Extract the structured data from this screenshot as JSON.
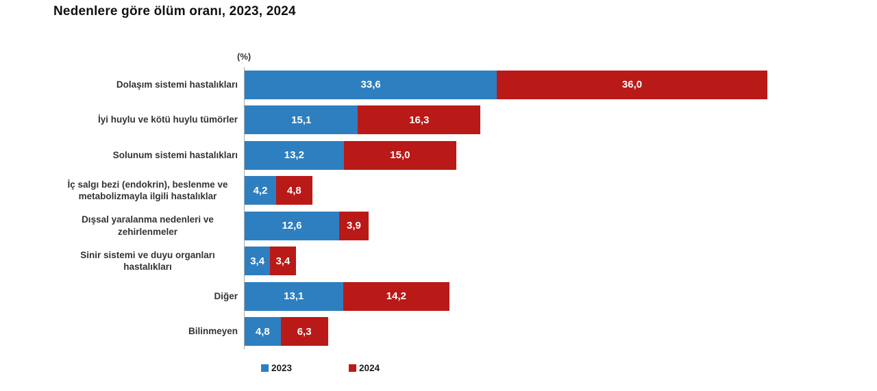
{
  "title": "Nedenlere göre ölüm oranı, 2023, 2024",
  "unit_label": "(%)",
  "colors": {
    "series_2023": "#2E7FC0",
    "series_2024": "#B91A17",
    "axis_line": "#a8a8a8"
  },
  "legend": [
    {
      "label": "2023",
      "color": "#2E7FC0"
    },
    {
      "label": "2024",
      "color": "#B91A17"
    }
  ],
  "chart_data": {
    "type": "bar",
    "orientation": "horizontal-stacked",
    "title": "Nedenlere göre ölüm oranı, 2023, 2024",
    "xlabel": "(%)",
    "value_format": "comma-decimal",
    "grid": false,
    "legend_position": "bottom",
    "categories": [
      "Dolaşım sistemi hastalıkları",
      "İyi huylu ve kötü huylu tümörler",
      "Solunum sistemi hastalıkları",
      "İç salgı bezi (endokrin), beslenme ve metabolizmayla ilgili hastalıklar",
      "Dışsal yaralanma nedenleri ve zehirlenmeler",
      "Sinir sistemi ve duyu organları hastalıkları",
      "Diğer",
      "Bilinmeyen"
    ],
    "series": [
      {
        "name": "2023",
        "color": "#2E7FC0",
        "values": [
          33.6,
          15.1,
          13.2,
          4.2,
          12.6,
          3.4,
          13.1,
          4.8
        ],
        "display_labels": [
          "33,6",
          "15,1",
          "13,2",
          "4,2",
          "12,6",
          "3,4",
          "13,1",
          "4,8"
        ]
      },
      {
        "name": "2024",
        "color": "#B91A17",
        "values": [
          36.0,
          16.3,
          15.0,
          4.8,
          3.9,
          3.4,
          14.2,
          6.3
        ],
        "display_labels": [
          "36,0",
          "16,3",
          "15,0",
          "4,8",
          "3,9",
          "3,4",
          "14,2",
          "6,3"
        ]
      }
    ]
  }
}
